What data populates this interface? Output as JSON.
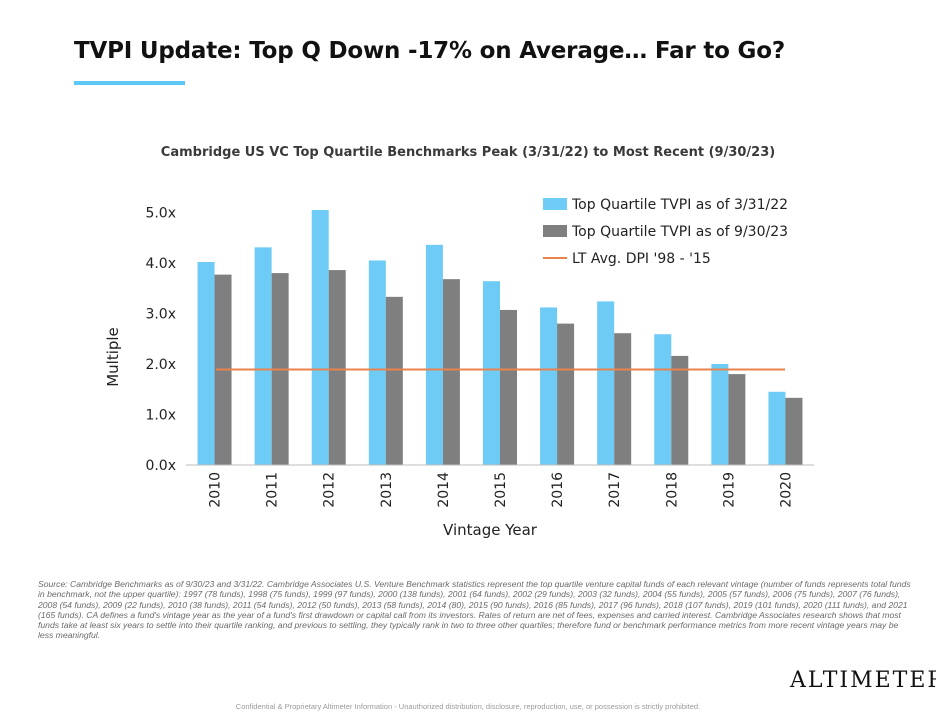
{
  "slide": {
    "title": "TVPI Update: Top Q Down -17% on Average… Far to Go?",
    "accent_color": "#5bc8f5",
    "source_note": "Source: Cambridge Benchmarks as of 9/30/23 and 3/31/22. Cambridge Associates U.S. Venture Benchmark statistics represent the top quartile venture capital funds of each relevant vintage (number of funds represents total funds in benchmark, not the upper quartile): 1997 (78 funds), 1998 (75 funds), 1999 (97 funds), 2000 (138 funds), 2001 (64 funds), 2002 (29 funds), 2003 (32 funds), 2004 (55 funds), 2005 (57 funds), 2006 (75 funds), 2007 (76 funds), 2008 (54 funds), 2009 (22 funds), 2010 (38 funds), 2011 (54 funds), 2012 (50 funds), 2013 (58 funds), 2014 (80), 2015 (90 funds), 2016 (85 funds), 2017 (96 funds), 2018 (107 funds), 2019 (101 funds), 2020 (111 funds), and 2021 (165 funds). CA defines a fund's vintage year as the year of a fund's first drawdown or capital call from its investors. Rates of return are net of fees, expenses and carried interest. Cambridge Associates research shows that most funds take at least six years to settle into their quartile ranking, and previous to settling, they typically rank in two to three other quartiles; therefore fund or benchmark performance metrics from more recent vintage years may be less meaningful.",
    "brand": "Altimeter",
    "footer": "Confidential & Proprietary Altimeter Information - Unauthorized distribution, disclosure, reproduction, use, or possession is strictly prohibited."
  },
  "chart_data": {
    "type": "bar",
    "title": "Cambridge US VC Top Quartile Benchmarks Peak (3/31/22) to Most Recent (9/30/23)",
    "xlabel": "Vintage Year",
    "ylabel": "Multiple",
    "categories": [
      "2010",
      "2011",
      "2012",
      "2013",
      "2014",
      "2015",
      "2016",
      "2017",
      "2018",
      "2019",
      "2020"
    ],
    "y_ticks": [
      0,
      1,
      2,
      3,
      4,
      5
    ],
    "y_tick_labels": [
      "0.0x",
      "1.0x",
      "2.0x",
      "3.0x",
      "4.0x",
      "5.0x"
    ],
    "ylim": [
      0,
      5.2
    ],
    "grid": false,
    "legend_position": "top-right",
    "series": [
      {
        "name": "Top Quartile TVPI as of 3/31/22",
        "color": "#6ecbf5",
        "values": [
          4.02,
          4.31,
          5.05,
          4.05,
          4.36,
          3.64,
          3.12,
          3.24,
          2.59,
          2.0,
          1.45
        ]
      },
      {
        "name": "Top Quartile TVPI as of 9/30/23",
        "color": "#7f7f7f",
        "values": [
          3.77,
          3.8,
          3.86,
          3.33,
          3.68,
          3.07,
          2.8,
          2.61,
          2.16,
          1.8,
          1.33
        ]
      }
    ],
    "reference_line": {
      "name": "LT Avg. DPI '98 - '15",
      "color": "#e8834e",
      "value": 1.89
    }
  }
}
